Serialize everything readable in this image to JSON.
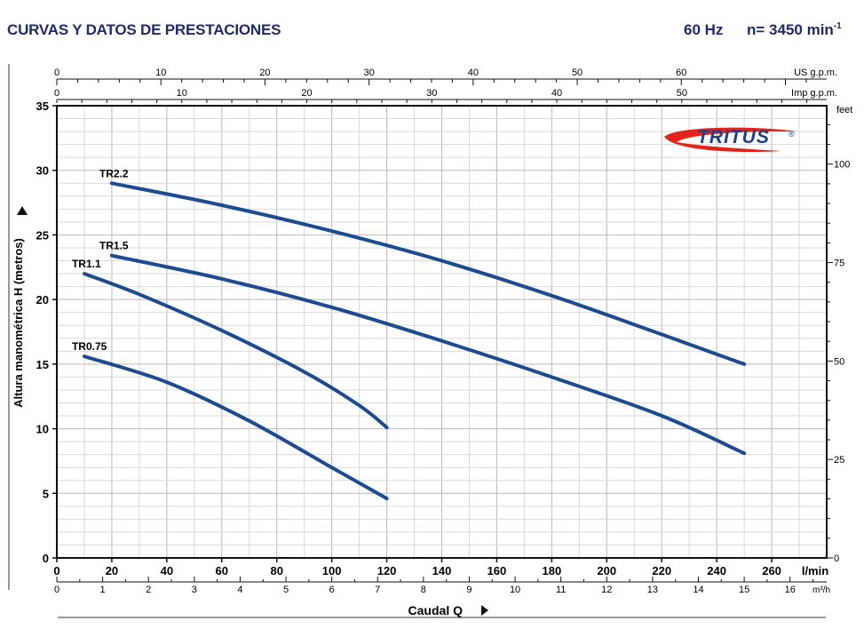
{
  "header": {
    "title": "CURVAS Y DATOS DE PRESTACIONES",
    "frequency": "60 Hz",
    "speed_prefix": "n= 3450 min",
    "speed_exp": "-1"
  },
  "logo": {
    "text": "TRITUS",
    "mark": "®"
  },
  "colors": {
    "curve": "#1d4b91",
    "grid": "#b9b9b9",
    "grid_minor": "#d9d9d9",
    "header": "#1f2a6b",
    "logo_swoosh": "#e2231a",
    "logo_text": "#1d3f8c"
  },
  "chart_data": {
    "type": "line",
    "ylabel": "Altura manométrica H (metros)",
    "xlabel": "Caudal Q",
    "x_unit": "l/min",
    "xlim": [
      0,
      280
    ],
    "ylim": [
      0,
      35
    ],
    "x_ticks": [
      0,
      20,
      40,
      60,
      80,
      100,
      120,
      140,
      160,
      180,
      200,
      220,
      240,
      260
    ],
    "y_ticks": [
      0,
      5,
      10,
      15,
      20,
      25,
      30,
      35
    ],
    "grid": true,
    "right_axis": {
      "unit": "feet",
      "ticks": [
        0,
        25,
        50,
        75,
        100
      ]
    },
    "top_axis_us": {
      "unit": "US g.p.m.",
      "ticks": [
        0,
        10,
        20,
        30,
        40,
        50,
        60
      ]
    },
    "top_axis_imp": {
      "unit": "Imp g.p.m.",
      "ticks": [
        0,
        10,
        20,
        30,
        40,
        50
      ]
    },
    "bottom_axis_m3h": {
      "unit": "m³/h",
      "ticks": [
        0,
        1,
        2,
        3,
        4,
        5,
        6,
        7,
        8,
        9,
        10,
        11,
        12,
        13,
        14,
        15,
        16
      ]
    },
    "series": [
      {
        "name": "TR2.2",
        "x": [
          20,
          60,
          100,
          140,
          180,
          220,
          250
        ],
        "y": [
          29,
          27.3,
          25.3,
          23,
          20.3,
          17.3,
          15
        ]
      },
      {
        "name": "TR1.5",
        "x": [
          20,
          60,
          100,
          140,
          180,
          220,
          250
        ],
        "y": [
          23.4,
          21.6,
          19.4,
          16.8,
          14,
          11,
          8.1
        ]
      },
      {
        "name": "TR1.1",
        "x": [
          10,
          30,
          60,
          90,
          110,
          120
        ],
        "y": [
          22,
          20.4,
          17.6,
          14.4,
          11.8,
          10.1
        ]
      },
      {
        "name": "TR0.75",
        "x": [
          10,
          40,
          70,
          100,
          120
        ],
        "y": [
          15.6,
          13.6,
          10.6,
          7,
          4.6
        ]
      }
    ]
  }
}
